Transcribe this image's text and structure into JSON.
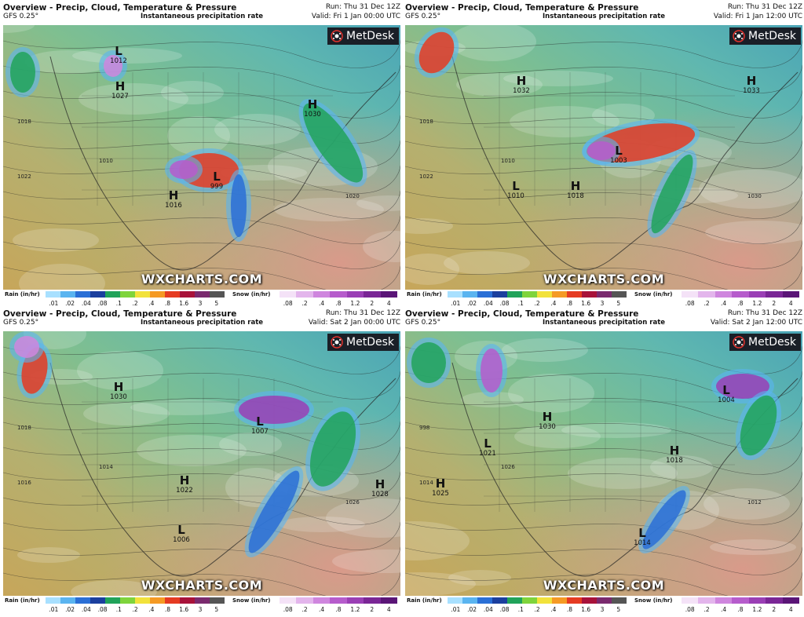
{
  "panels": [
    {
      "title": "Overview - Precip, Cloud, Temperature & Pressure",
      "model": "GFS 0.25°",
      "subtitle": "Instantaneous precipitation rate",
      "run": "Run: Thu 31 Dec 12Z",
      "valid": "Valid: Fri 1 Jan 00:00 UTC",
      "brand": "MetDesk",
      "watermark": "WXCHARTS.COM",
      "pressure_marks": [
        {
          "type": "L",
          "value": "1012"
        },
        {
          "type": "H",
          "value": "1027"
        },
        {
          "type": "H",
          "value": "1030"
        },
        {
          "type": "L",
          "value": "999"
        },
        {
          "type": "H",
          "value": "1016"
        }
      ],
      "contour_labels": [
        "1018",
        "1022",
        "1010",
        "1020"
      ]
    },
    {
      "title": "Overview - Precip, Cloud, Temperature & Pressure",
      "model": "GFS 0.25°",
      "subtitle": "Instantaneous precipitation rate",
      "run": "Run: Thu 31 Dec 12Z",
      "valid": "Valid: Fri 1 Jan 12:00 UTC",
      "brand": "MetDesk",
      "watermark": "WXCHARTS.COM",
      "pressure_marks": [
        {
          "type": "H",
          "value": "1032"
        },
        {
          "type": "H",
          "value": "1033"
        },
        {
          "type": "L",
          "value": "1003"
        },
        {
          "type": "L",
          "value": "1010"
        },
        {
          "type": "H",
          "value": "1018"
        }
      ],
      "contour_labels": [
        "1018",
        "1022",
        "1010",
        "1030"
      ]
    },
    {
      "title": "Overview - Precip, Cloud, Temperature & Pressure",
      "model": "GFS 0.25°",
      "subtitle": "Instantaneous precipitation rate",
      "run": "Run: Thu 31 Dec 12Z",
      "valid": "Valid: Sat 2 Jan 00:00 UTC",
      "brand": "MetDesk",
      "watermark": "WXCHARTS.COM",
      "pressure_marks": [
        {
          "type": "H",
          "value": "1030"
        },
        {
          "type": "L",
          "value": "1007"
        },
        {
          "type": "H",
          "value": "1022"
        },
        {
          "type": "H",
          "value": "1028"
        },
        {
          "type": "L",
          "value": "1006"
        }
      ],
      "contour_labels": [
        "1018",
        "1016",
        "1014",
        "1026"
      ]
    },
    {
      "title": "Overview - Precip, Cloud, Temperature & Pressure",
      "model": "GFS 0.25°",
      "subtitle": "Instantaneous precipitation rate",
      "run": "Run: Thu 31 Dec 12Z",
      "valid": "Valid: Sat 2 Jan 12:00 UTC",
      "brand": "MetDesk",
      "watermark": "WXCHARTS.COM",
      "pressure_marks": [
        {
          "type": "H",
          "value": "1030"
        },
        {
          "type": "L",
          "value": "1004"
        },
        {
          "type": "L",
          "value": "1021"
        },
        {
          "type": "H",
          "value": "1018"
        },
        {
          "type": "H",
          "value": "1025"
        },
        {
          "type": "L",
          "value": "1014"
        }
      ],
      "contour_labels": [
        "998",
        "1014",
        "1026",
        "1012"
      ]
    }
  ],
  "legend": {
    "rain_label": "Rain (in/hr)",
    "snow_label": "Snow (in/hr)",
    "rain_ticks": [
      ".01",
      ".02",
      ".04",
      ".08",
      ".1",
      ".2",
      ".4",
      ".8",
      "1.6",
      "3",
      "5"
    ],
    "snow_ticks": [
      ".08",
      ".2",
      ".4",
      ".8",
      "1.2",
      "2",
      "4"
    ],
    "rain_colors": [
      "#a8e0ff",
      "#5ab4f0",
      "#2a6fd6",
      "#1b3f9e",
      "#21a35a",
      "#7fd43c",
      "#f2e23b",
      "#f59a24",
      "#e53b22",
      "#a8123a",
      "#7a2a6e",
      "#555555"
    ],
    "snow_colors": [
      "#f4e2f7",
      "#e3b5ec",
      "#cf86de",
      "#b65ccc",
      "#9a3fb5",
      "#7a2696",
      "#5a1577"
    ]
  }
}
